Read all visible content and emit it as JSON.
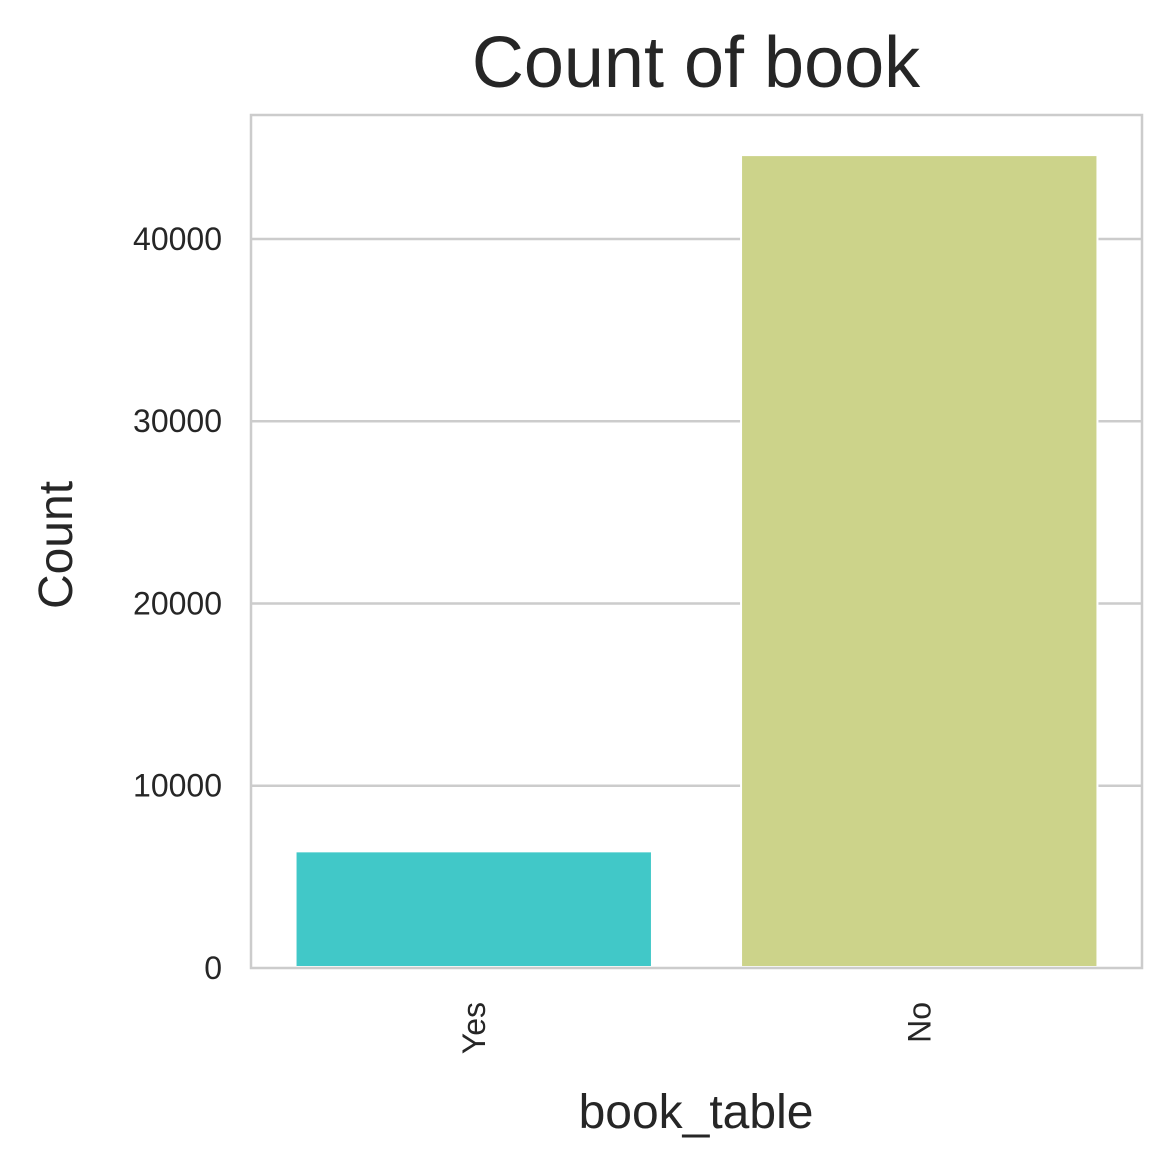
{
  "chart_data": {
    "type": "bar",
    "title": "Count of book",
    "xlabel": "book_table",
    "ylabel": "Count",
    "categories": [
      "Yes",
      "No"
    ],
    "values": [
      6400,
      44600
    ],
    "colors": [
      "#41c8c8",
      "#ccd38a"
    ],
    "ylim": [
      0,
      46800
    ],
    "yticks": [
      0,
      10000,
      20000,
      30000,
      40000
    ],
    "ytick_labels": [
      "0",
      "10000",
      "20000",
      "30000",
      "40000"
    ],
    "grid": true,
    "legend": "none"
  }
}
